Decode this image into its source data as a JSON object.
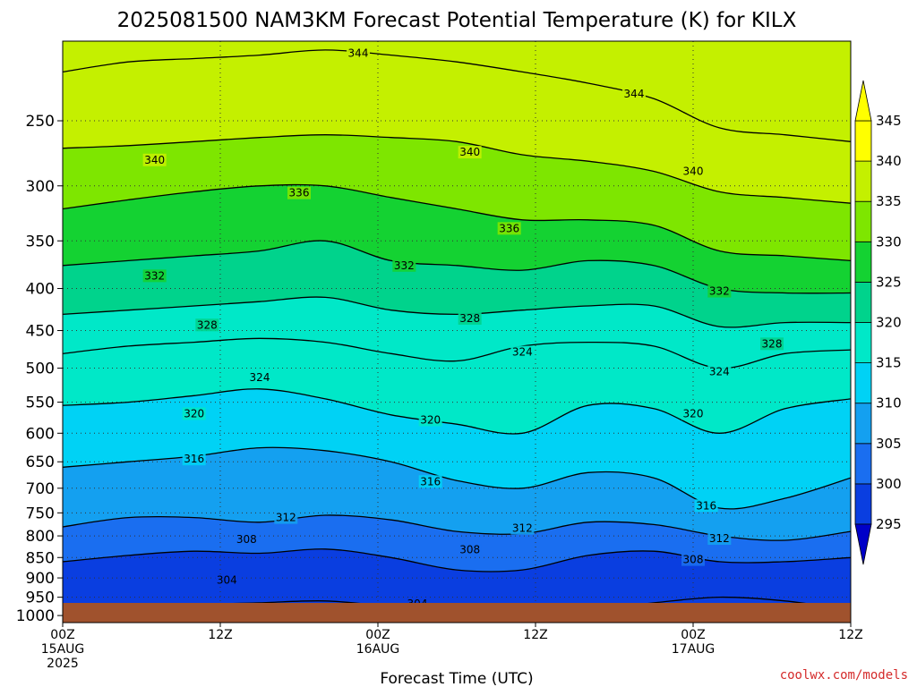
{
  "chart_data": {
    "type": "heatmap",
    "title": "2025081500 NAM3KM Forecast Potential Temperature (K) for KILX",
    "xlabel": "Forecast Time (UTC)",
    "ylabel": "",
    "x_ticks": [
      {
        "hour": 0,
        "lines": [
          "00Z",
          "15AUG",
          "2025"
        ]
      },
      {
        "hour": 12,
        "lines": [
          "12Z"
        ]
      },
      {
        "hour": 24,
        "lines": [
          "00Z",
          "16AUG"
        ]
      },
      {
        "hour": 36,
        "lines": [
          "12Z"
        ]
      },
      {
        "hour": 48,
        "lines": [
          "00Z",
          "17AUG"
        ]
      },
      {
        "hour": 60,
        "lines": [
          "12Z"
        ]
      }
    ],
    "xlim": [
      0,
      60
    ],
    "y_ticks": [
      250,
      300,
      350,
      400,
      450,
      500,
      550,
      600,
      650,
      700,
      750,
      800,
      850,
      900,
      950,
      1000
    ],
    "ylim": [
      200,
      1020
    ],
    "y_scale": "log-pressure (inverted)",
    "grid": "dotted",
    "colorbar": {
      "levels": [
        295,
        300,
        305,
        310,
        315,
        320,
        325,
        330,
        335,
        340,
        345
      ],
      "colors": [
        "#0000c8",
        "#0a3ee0",
        "#1a6ef0",
        "#14a0f0",
        "#00d2f5",
        "#00e8c8",
        "#00d38c",
        "#14d232",
        "#7ee600",
        "#c4f000",
        "#ffff00"
      ],
      "extend_low_color": "#0000c8",
      "extend_high_color": "#ffff00",
      "placement": "right"
    },
    "ground_color": "#a0522d",
    "series": [
      {
        "theta": 304,
        "p": [
          1000,
          985,
          970,
          965,
          960,
          975,
          990,
          1000,
          985,
          965,
          950,
          960,
          985
        ]
      },
      {
        "theta": 308,
        "p": [
          860,
          845,
          835,
          840,
          830,
          850,
          880,
          880,
          845,
          835,
          860,
          860,
          850
        ]
      },
      {
        "theta": 312,
        "p": [
          780,
          760,
          760,
          770,
          755,
          765,
          790,
          795,
          770,
          775,
          800,
          810,
          790
        ]
      },
      {
        "theta": 316,
        "p": [
          660,
          650,
          640,
          625,
          630,
          650,
          685,
          700,
          670,
          680,
          740,
          720,
          680
        ]
      },
      {
        "theta": 320,
        "p": [
          555,
          550,
          540,
          530,
          545,
          570,
          585,
          600,
          555,
          560,
          600,
          560,
          545
        ]
      },
      {
        "theta": 324,
        "p": [
          480,
          470,
          465,
          460,
          465,
          480,
          490,
          470,
          465,
          470,
          500,
          480,
          475
        ]
      },
      {
        "theta": 328,
        "p": [
          430,
          425,
          420,
          415,
          410,
          425,
          430,
          425,
          420,
          420,
          445,
          440,
          440
        ]
      },
      {
        "theta": 332,
        "p": [
          375,
          370,
          365,
          360,
          350,
          370,
          375,
          380,
          370,
          375,
          400,
          405,
          405
        ]
      },
      {
        "theta": 336,
        "p": [
          320,
          312,
          305,
          300,
          300,
          310,
          320,
          330,
          330,
          335,
          360,
          365,
          370
        ]
      },
      {
        "theta": 340,
        "p": [
          270,
          268,
          265,
          262,
          260,
          262,
          265,
          275,
          280,
          288,
          305,
          310,
          315
        ]
      },
      {
        "theta": 344,
        "p": [
          218,
          212,
          210,
          208,
          205,
          208,
          212,
          218,
          225,
          235,
          255,
          260,
          265
        ]
      }
    ],
    "series_hours": [
      0,
      5,
      10,
      15,
      20,
      25,
      30,
      35,
      40,
      45,
      50,
      55,
      60
    ],
    "contour_labels": [
      {
        "text": "344",
        "hour": 22.5,
        "p": 207
      },
      {
        "text": "344",
        "hour": 43.5,
        "p": 232
      },
      {
        "text": "340",
        "hour": 7,
        "p": 279
      },
      {
        "text": "340",
        "hour": 31,
        "p": 273
      },
      {
        "text": "340",
        "hour": 48,
        "p": 288
      },
      {
        "text": "336",
        "hour": 18,
        "p": 306
      },
      {
        "text": "336",
        "hour": 34,
        "p": 338
      },
      {
        "text": "332",
        "hour": 7,
        "p": 386
      },
      {
        "text": "332",
        "hour": 26,
        "p": 375
      },
      {
        "text": "332",
        "hour": 50,
        "p": 403
      },
      {
        "text": "328",
        "hour": 11,
        "p": 443
      },
      {
        "text": "328",
        "hour": 31,
        "p": 435
      },
      {
        "text": "328",
        "hour": 54,
        "p": 467
      },
      {
        "text": "324",
        "hour": 15,
        "p": 513
      },
      {
        "text": "324",
        "hour": 35,
        "p": 478
      },
      {
        "text": "324",
        "hour": 50,
        "p": 505
      },
      {
        "text": "320",
        "hour": 10,
        "p": 568
      },
      {
        "text": "320",
        "hour": 28,
        "p": 578
      },
      {
        "text": "320",
        "hour": 48,
        "p": 568
      },
      {
        "text": "316",
        "hour": 10,
        "p": 645
      },
      {
        "text": "316",
        "hour": 28,
        "p": 687
      },
      {
        "text": "316",
        "hour": 49,
        "p": 735
      },
      {
        "text": "312",
        "hour": 17,
        "p": 760
      },
      {
        "text": "312",
        "hour": 35,
        "p": 783
      },
      {
        "text": "312",
        "hour": 50,
        "p": 806
      },
      {
        "text": "308",
        "hour": 14,
        "p": 808
      },
      {
        "text": "308",
        "hour": 31,
        "p": 832
      },
      {
        "text": "308",
        "hour": 48,
        "p": 855
      },
      {
        "text": "304",
        "hour": 12.5,
        "p": 906
      },
      {
        "text": "304",
        "hour": 27,
        "p": 968
      }
    ]
  },
  "credit": "coolwx.com/models"
}
